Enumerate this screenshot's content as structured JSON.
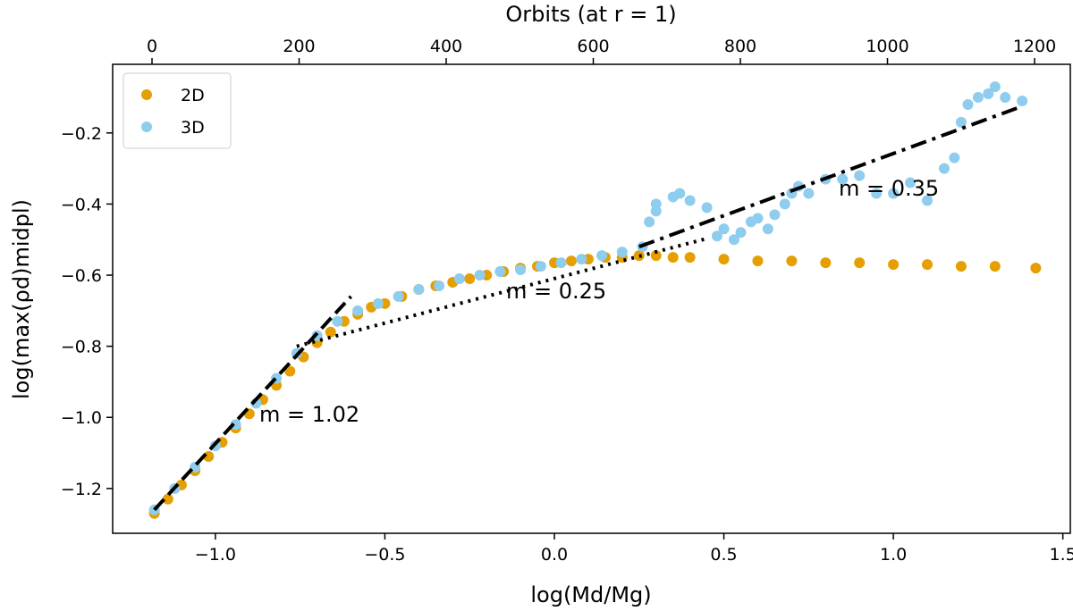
{
  "chart_data": {
    "type": "scatter",
    "xlabel": "log(Md/Mg)",
    "ylabel": "log(max(ρd)midpl)",
    "x2label": "Orbits (at r = 1)",
    "xlim": [
      -1.303,
      1.522
    ],
    "ylim": [
      -1.326,
      -0.007
    ],
    "x2lim": [
      -53.5,
      1248.6
    ],
    "xticks": [
      {
        "value": -1.0,
        "label": "−1.0"
      },
      {
        "value": -0.5,
        "label": "−0.5"
      },
      {
        "value": 0.0,
        "label": "0.0"
      },
      0.5,
      {
        "value": 1.0,
        "label": "1.0"
      },
      1.5
    ],
    "yticks": [
      {
        "value": -1.2,
        "label": "−1.2"
      },
      {
        "value": -1.0,
        "label": "−1.0"
      },
      {
        "value": -0.8,
        "label": "−0.8"
      },
      {
        "value": -0.6,
        "label": "−0.6"
      },
      {
        "value": -0.4,
        "label": "−0.4"
      },
      {
        "value": -0.2,
        "label": "−0.2"
      }
    ],
    "x2ticks": [
      0,
      200,
      400,
      600,
      800,
      1000,
      1200
    ],
    "legend": "upper left",
    "series": [
      {
        "name": "2D",
        "color": "#e69f00",
        "x": [
          -1.18,
          -1.14,
          -1.1,
          -1.06,
          -1.02,
          -0.98,
          -0.94,
          -0.9,
          -0.86,
          -0.82,
          -0.78,
          -0.74,
          -0.7,
          -0.66,
          -0.62,
          -0.58,
          -0.54,
          -0.5,
          -0.45,
          -0.4,
          -0.35,
          -0.3,
          -0.25,
          -0.2,
          -0.15,
          -0.1,
          -0.05,
          0,
          0.05,
          0.1,
          0.15,
          0.2,
          0.25,
          0.3,
          0.35,
          0.4,
          0.5,
          0.6,
          0.7,
          0.8,
          0.9,
          1.0,
          1.1,
          1.2,
          1.3,
          1.42
        ],
        "values": [
          -1.27,
          -1.23,
          -1.19,
          -1.15,
          -1.11,
          -1.07,
          -1.03,
          -0.99,
          -0.95,
          -0.91,
          -0.87,
          -0.83,
          -0.79,
          -0.76,
          -0.73,
          -0.71,
          -0.69,
          -0.68,
          -0.66,
          -0.64,
          -0.63,
          -0.62,
          -0.61,
          -0.6,
          -0.59,
          -0.58,
          -0.575,
          -0.565,
          -0.56,
          -0.555,
          -0.55,
          -0.55,
          -0.545,
          -0.545,
          -0.55,
          -0.55,
          -0.555,
          -0.56,
          -0.56,
          -0.565,
          -0.565,
          -0.57,
          -0.57,
          -0.575,
          -0.575,
          -0.58
        ]
      },
      {
        "name": "3D",
        "color": "#8ecdee",
        "x": [
          -1.18,
          -1.12,
          -1.06,
          -1.0,
          -0.94,
          -0.88,
          -0.82,
          -0.76,
          -0.7,
          -0.64,
          -0.58,
          -0.52,
          -0.46,
          -0.4,
          -0.34,
          -0.28,
          -0.22,
          -0.16,
          -0.1,
          -0.04,
          0.02,
          0.08,
          0.14,
          0.2,
          0.26,
          0.28,
          0.3,
          0.3,
          0.35,
          0.37,
          0.4,
          0.45,
          0.48,
          0.5,
          0.53,
          0.55,
          0.58,
          0.6,
          0.63,
          0.65,
          0.68,
          0.7,
          0.72,
          0.75,
          0.8,
          0.85,
          0.9,
          0.95,
          1.0,
          1.05,
          1.1,
          1.15,
          1.18,
          1.2,
          1.22,
          1.25,
          1.28,
          1.3,
          1.33,
          1.38
        ],
        "values": [
          -1.26,
          -1.2,
          -1.14,
          -1.08,
          -1.02,
          -0.96,
          -0.89,
          -0.82,
          -0.77,
          -0.73,
          -0.7,
          -0.68,
          -0.66,
          -0.64,
          -0.63,
          -0.61,
          -0.6,
          -0.59,
          -0.585,
          -0.575,
          -0.565,
          -0.555,
          -0.545,
          -0.535,
          -0.52,
          -0.45,
          -0.42,
          -0.4,
          -0.38,
          -0.37,
          -0.39,
          -0.41,
          -0.49,
          -0.47,
          -0.5,
          -0.48,
          -0.45,
          -0.44,
          -0.47,
          -0.43,
          -0.4,
          -0.37,
          -0.35,
          -0.37,
          -0.33,
          -0.33,
          -0.32,
          -0.37,
          -0.37,
          -0.34,
          -0.39,
          -0.3,
          -0.27,
          -0.17,
          -0.12,
          -0.1,
          -0.09,
          -0.07,
          -0.1,
          -0.11
        ]
      }
    ],
    "fits": [
      {
        "x": [
          -1.18,
          -0.6
        ],
        "values": [
          -1.26,
          -0.66
        ]
      },
      {
        "x": [
          -0.76,
          0.45
        ],
        "values": [
          -0.8,
          -0.497
        ]
      },
      {
        "x": [
          0.25,
          1.38
        ],
        "values": [
          -0.52,
          -0.125
        ]
      }
    ],
    "annotations": [
      "m = 1.02",
      "m = 0.25",
      "m = 0.35"
    ]
  }
}
